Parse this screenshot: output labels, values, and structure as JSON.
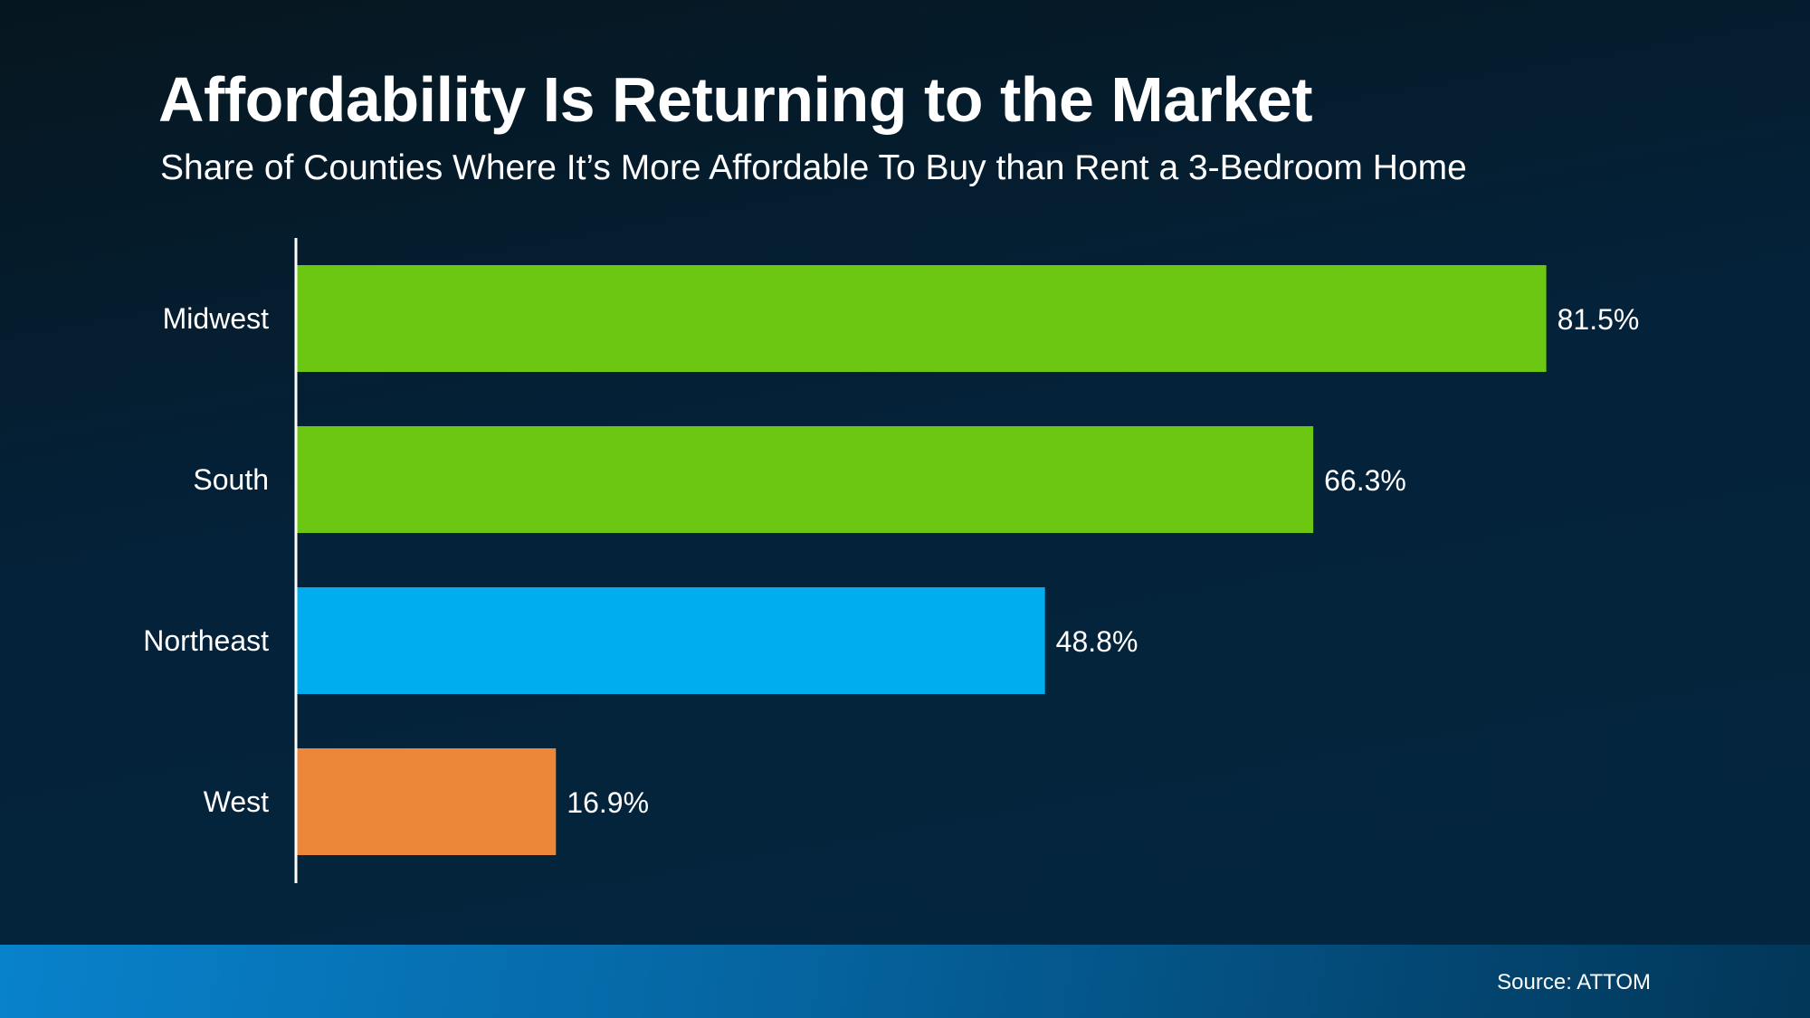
{
  "chart_data": {
    "type": "bar",
    "orientation": "horizontal",
    "title": "Affordability Is Returning to the Market",
    "subtitle": "Share of Counties Where It’s More Affordable To Buy than Rent a 3-Bedroom Home",
    "categories": [
      "Midwest",
      "South",
      "Northeast",
      "West"
    ],
    "values": [
      81.5,
      66.3,
      48.8,
      16.9
    ],
    "data_labels": [
      "81.5%",
      "66.3%",
      "48.8%",
      "16.9%"
    ],
    "colors": [
      "#6cc712",
      "#6cc712",
      "#00aeef",
      "#ec8638"
    ],
    "xlim": [
      0,
      100
    ],
    "grid": false,
    "legend": "none",
    "source": "Source: ATTOM"
  }
}
